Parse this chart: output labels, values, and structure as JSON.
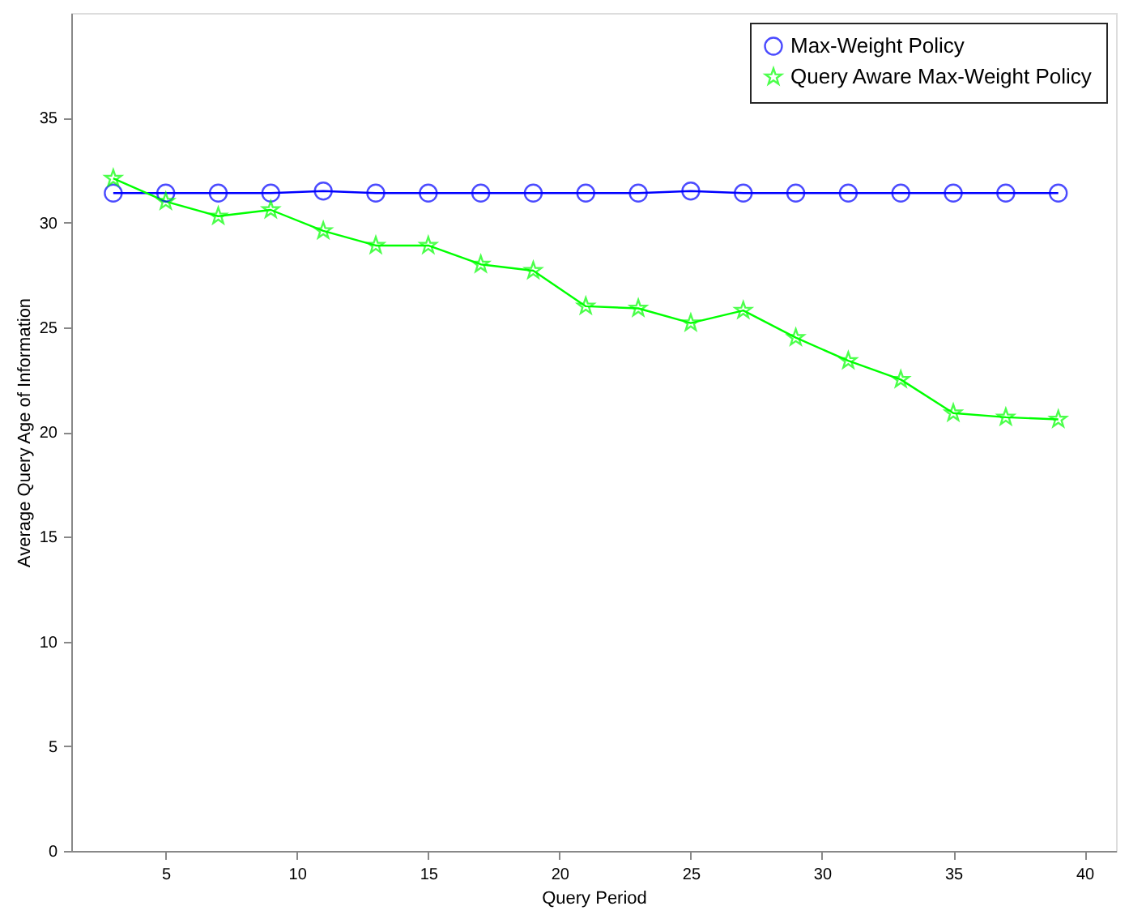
{
  "chart_data": {
    "type": "line",
    "xlabel": "Query Period",
    "ylabel": "Average Query Age of Information",
    "x": [
      3,
      5,
      7,
      9,
      11,
      13,
      15,
      17,
      19,
      21,
      23,
      25,
      27,
      29,
      31,
      33,
      35,
      37,
      39
    ],
    "series": [
      {
        "name": "Max-Weight Policy",
        "color": "#0000ff",
        "marker": "circle",
        "values": [
          31.4,
          31.4,
          31.4,
          31.4,
          31.5,
          31.4,
          31.4,
          31.4,
          31.4,
          31.4,
          31.4,
          31.5,
          31.4,
          31.4,
          31.4,
          31.4,
          31.4,
          31.4,
          31.4
        ]
      },
      {
        "name": "Query Aware Max-Weight Policy",
        "color": "#00ff00",
        "marker": "star",
        "values": [
          32.1,
          31.0,
          30.3,
          30.6,
          29.6,
          28.9,
          28.9,
          28.0,
          27.7,
          26.0,
          25.9,
          25.2,
          25.8,
          24.5,
          23.4,
          22.5,
          20.9,
          20.7,
          20.6
        ]
      }
    ],
    "xlim": [
      1.4,
      41.2
    ],
    "xticks": [
      5,
      10,
      15,
      20,
      25,
      30,
      35,
      40
    ],
    "ylim": [
      0,
      40
    ],
    "yticks": [
      0,
      5,
      10,
      15,
      20,
      25,
      30,
      35
    ],
    "grid": false,
    "legend": "top right",
    "line_style": "solid"
  }
}
